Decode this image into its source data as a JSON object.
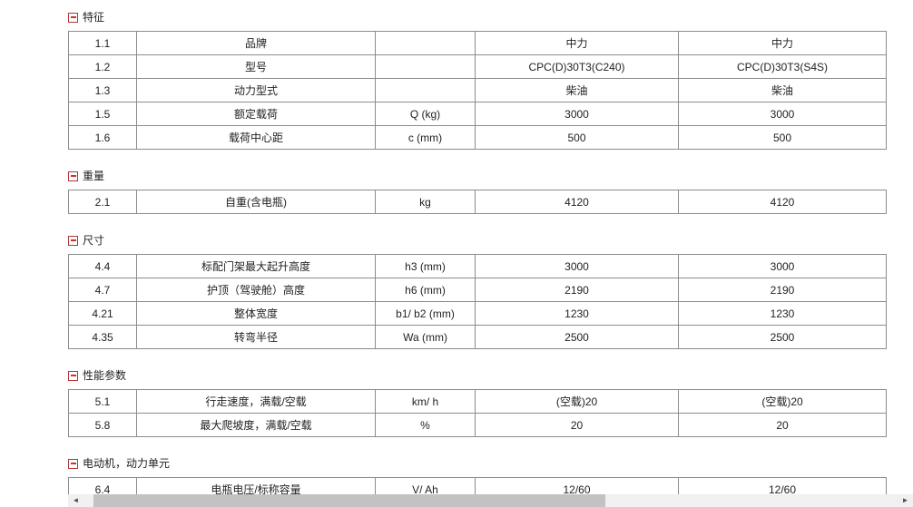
{
  "colors": {
    "section_icon_red": "#c03434",
    "table_border": "#8c8c8c",
    "scrollbar_track": "#f0f0f0",
    "scrollbar_thumb": "#c2c2c2"
  },
  "icons": {
    "collapse": "minus-in-red-box",
    "scroll_left": "◄",
    "scroll_right": "►"
  },
  "sections": [
    {
      "title": "特征",
      "rows": [
        {
          "no": "1.1",
          "name": "品牌",
          "unit": "",
          "value1": "中力",
          "value2": "中力"
        },
        {
          "no": "1.2",
          "name": "型号",
          "unit": "",
          "value1": "CPC(D)30T3(C240)",
          "value2": "CPC(D)30T3(S4S)"
        },
        {
          "no": "1.3",
          "name": "动力型式",
          "unit": "",
          "value1": "柴油",
          "value2": "柴油"
        },
        {
          "no": "1.5",
          "name": "额定载荷",
          "unit": "Q (kg)",
          "value1": "3000",
          "value2": "3000"
        },
        {
          "no": "1.6",
          "name": "载荷中心距",
          "unit": "c (mm)",
          "value1": "500",
          "value2": "500"
        }
      ]
    },
    {
      "title": "重量",
      "rows": [
        {
          "no": "2.1",
          "name": "自重(含电瓶)",
          "unit": "kg",
          "value1": "4120",
          "value2": "4120"
        }
      ]
    },
    {
      "title": "尺寸",
      "rows": [
        {
          "no": "4.4",
          "name": "标配门架最大起升高度",
          "unit": "h3 (mm)",
          "value1": "3000",
          "value2": "3000"
        },
        {
          "no": "4.7",
          "name": "护顶（驾驶舱）高度",
          "unit": "h6 (mm)",
          "value1": "2190",
          "value2": "2190"
        },
        {
          "no": "4.21",
          "name": "整体宽度",
          "unit": "b1/ b2 (mm)",
          "value1": "1230",
          "value2": "1230"
        },
        {
          "no": "4.35",
          "name": "转弯半径",
          "unit": "Wa (mm)",
          "value1": "2500",
          "value2": "2500"
        }
      ]
    },
    {
      "title": "性能参数",
      "rows": [
        {
          "no": "5.1",
          "name": "行走速度，满载/空载",
          "unit": "km/ h",
          "value1": "(空载)20",
          "value2": "(空载)20"
        },
        {
          "no": "5.8",
          "name": "最大爬坡度，满载/空载",
          "unit": "%",
          "value1": "20",
          "value2": "20"
        }
      ]
    },
    {
      "title": "电动机，动力单元",
      "rows": [
        {
          "no": "6.4",
          "name": "电瓶电压/标称容量",
          "unit": "V/ Ah",
          "value1": "12/60",
          "value2": "12/60"
        }
      ]
    }
  ],
  "scrollbar": {
    "left_arrow": "◄",
    "right_arrow": "►"
  }
}
